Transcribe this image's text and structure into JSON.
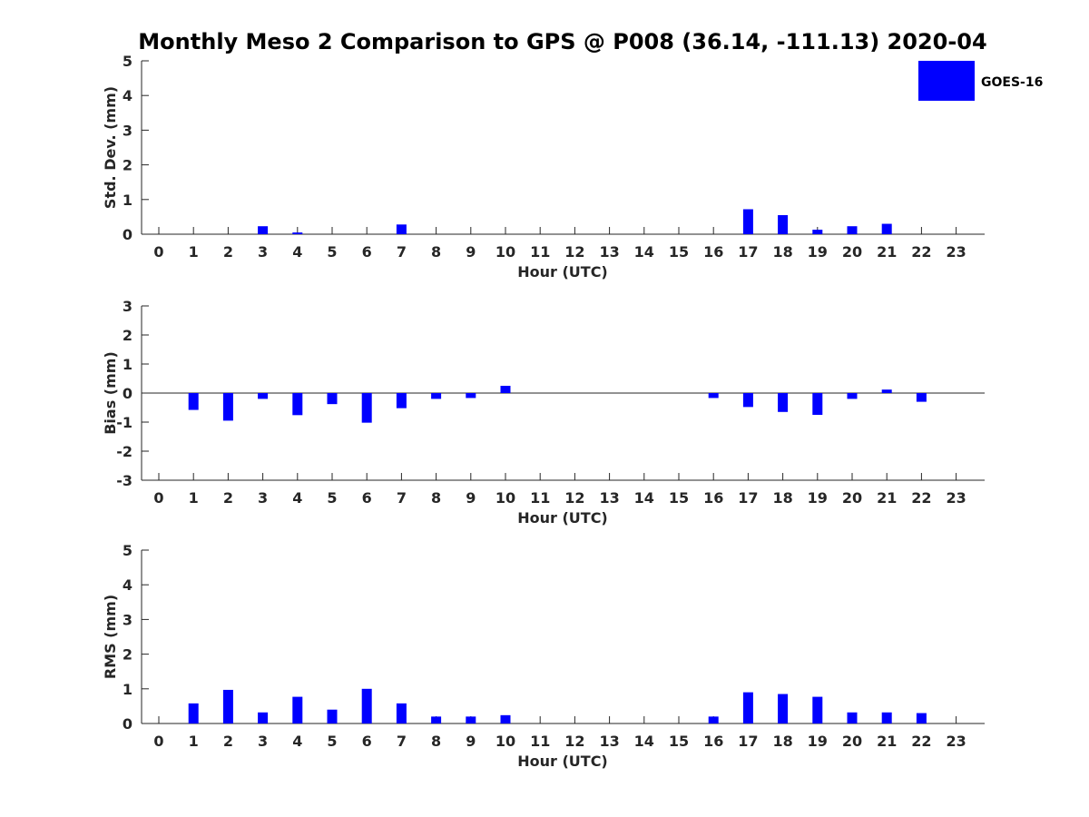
{
  "title": "Monthly Meso 2 Comparison to GPS @ P008 (36.14, -111.13) 2020-04",
  "legend": {
    "label": "GOES-16",
    "color": "#0000ff",
    "position": "top-right"
  },
  "bar_color": "#0000ff",
  "chart_data": [
    {
      "type": "bar",
      "name": "std-dev",
      "xlabel": "Hour (UTC)",
      "ylabel": "Std. Dev. (mm)",
      "ylim": [
        0,
        5
      ],
      "yticks": [
        0,
        1,
        2,
        3,
        4,
        5
      ],
      "categories": [
        "0",
        "1",
        "2",
        "3",
        "4",
        "5",
        "6",
        "7",
        "8",
        "9",
        "10",
        "11",
        "12",
        "13",
        "14",
        "15",
        "16",
        "17",
        "18",
        "19",
        "20",
        "21",
        "22",
        "23"
      ],
      "series": [
        {
          "name": "GOES-16",
          "values": [
            null,
            null,
            null,
            0.23,
            0.05,
            null,
            null,
            0.28,
            null,
            null,
            null,
            null,
            null,
            null,
            null,
            null,
            null,
            0.72,
            0.55,
            0.13,
            0.23,
            0.3,
            null,
            null
          ]
        }
      ]
    },
    {
      "type": "bar",
      "name": "bias",
      "xlabel": "Hour (UTC)",
      "ylabel": "Bias (mm)",
      "ylim": [
        -3,
        3
      ],
      "yticks": [
        -3,
        -2,
        -1,
        0,
        1,
        2,
        3
      ],
      "zero_line": true,
      "categories": [
        "0",
        "1",
        "2",
        "3",
        "4",
        "5",
        "6",
        "7",
        "8",
        "9",
        "10",
        "11",
        "12",
        "13",
        "14",
        "15",
        "16",
        "17",
        "18",
        "19",
        "20",
        "21",
        "22",
        "23"
      ],
      "series": [
        {
          "name": "GOES-16",
          "values": [
            null,
            -0.58,
            -0.95,
            -0.2,
            -0.76,
            -0.38,
            -1.02,
            -0.52,
            -0.2,
            -0.17,
            0.25,
            null,
            null,
            null,
            null,
            null,
            -0.17,
            -0.48,
            -0.65,
            -0.75,
            -0.2,
            0.12,
            -0.3,
            null
          ]
        }
      ]
    },
    {
      "type": "bar",
      "name": "rms",
      "xlabel": "Hour (UTC)",
      "ylabel": "RMS (mm)",
      "ylim": [
        0,
        5
      ],
      "yticks": [
        0,
        1,
        2,
        3,
        4,
        5
      ],
      "categories": [
        "0",
        "1",
        "2",
        "3",
        "4",
        "5",
        "6",
        "7",
        "8",
        "9",
        "10",
        "11",
        "12",
        "13",
        "14",
        "15",
        "16",
        "17",
        "18",
        "19",
        "20",
        "21",
        "22",
        "23"
      ],
      "series": [
        {
          "name": "GOES-16",
          "values": [
            null,
            0.58,
            0.97,
            0.32,
            0.77,
            0.4,
            1.0,
            0.58,
            0.2,
            0.2,
            0.24,
            null,
            null,
            null,
            null,
            null,
            0.2,
            0.9,
            0.85,
            0.77,
            0.32,
            0.32,
            0.3,
            null
          ]
        }
      ]
    }
  ]
}
